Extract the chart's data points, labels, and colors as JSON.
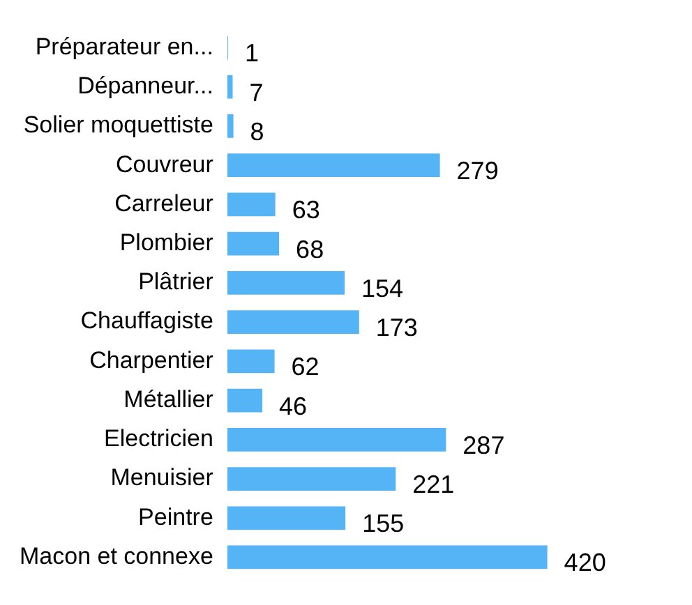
{
  "chart_data": {
    "type": "bar",
    "orientation": "horizontal",
    "categories": [
      "Préparateur en...",
      "Dépanneur...",
      "Solier moquettiste",
      "Couvreur",
      "Carreleur",
      "Plombier",
      "Plâtrier",
      "Chauffagiste",
      "Charpentier",
      "Métallier",
      "Electricien",
      "Menuisier",
      "Peintre",
      "Macon et connexe"
    ],
    "values": [
      1,
      7,
      8,
      279,
      63,
      68,
      154,
      173,
      62,
      46,
      287,
      221,
      155,
      420
    ],
    "color": "#55b4f5",
    "data_labels": true,
    "grid": false,
    "legend": false
  }
}
